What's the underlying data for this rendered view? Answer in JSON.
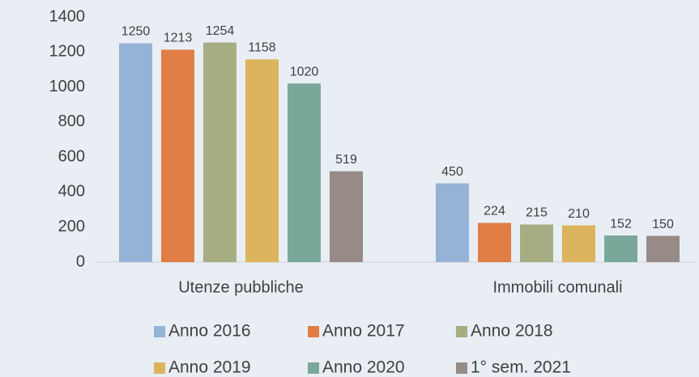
{
  "chart_data": {
    "type": "bar",
    "categories": [
      "Utenze pubbliche",
      "Immobili comunali"
    ],
    "series": [
      {
        "name": "Anno 2016",
        "color": "#95b3d7",
        "values": [
          1250,
          450
        ]
      },
      {
        "name": "Anno 2017",
        "color": "#e07e45",
        "values": [
          1213,
          224
        ]
      },
      {
        "name": "Anno 2018",
        "color": "#a6ad83",
        "values": [
          1254,
          215
        ]
      },
      {
        "name": "Anno 2019",
        "color": "#dcb45e",
        "values": [
          1158,
          210
        ]
      },
      {
        "name": "Anno 2020",
        "color": "#79a89b",
        "values": [
          1020,
          152
        ]
      },
      {
        "name": "1° sem. 2021",
        "color": "#978b88",
        "values": [
          519,
          150
        ]
      }
    ],
    "ylim": [
      0,
      1400
    ],
    "yticks": [
      0,
      200,
      400,
      600,
      800,
      1000,
      1200,
      1400
    ],
    "grid": false,
    "legend": "bottom"
  }
}
